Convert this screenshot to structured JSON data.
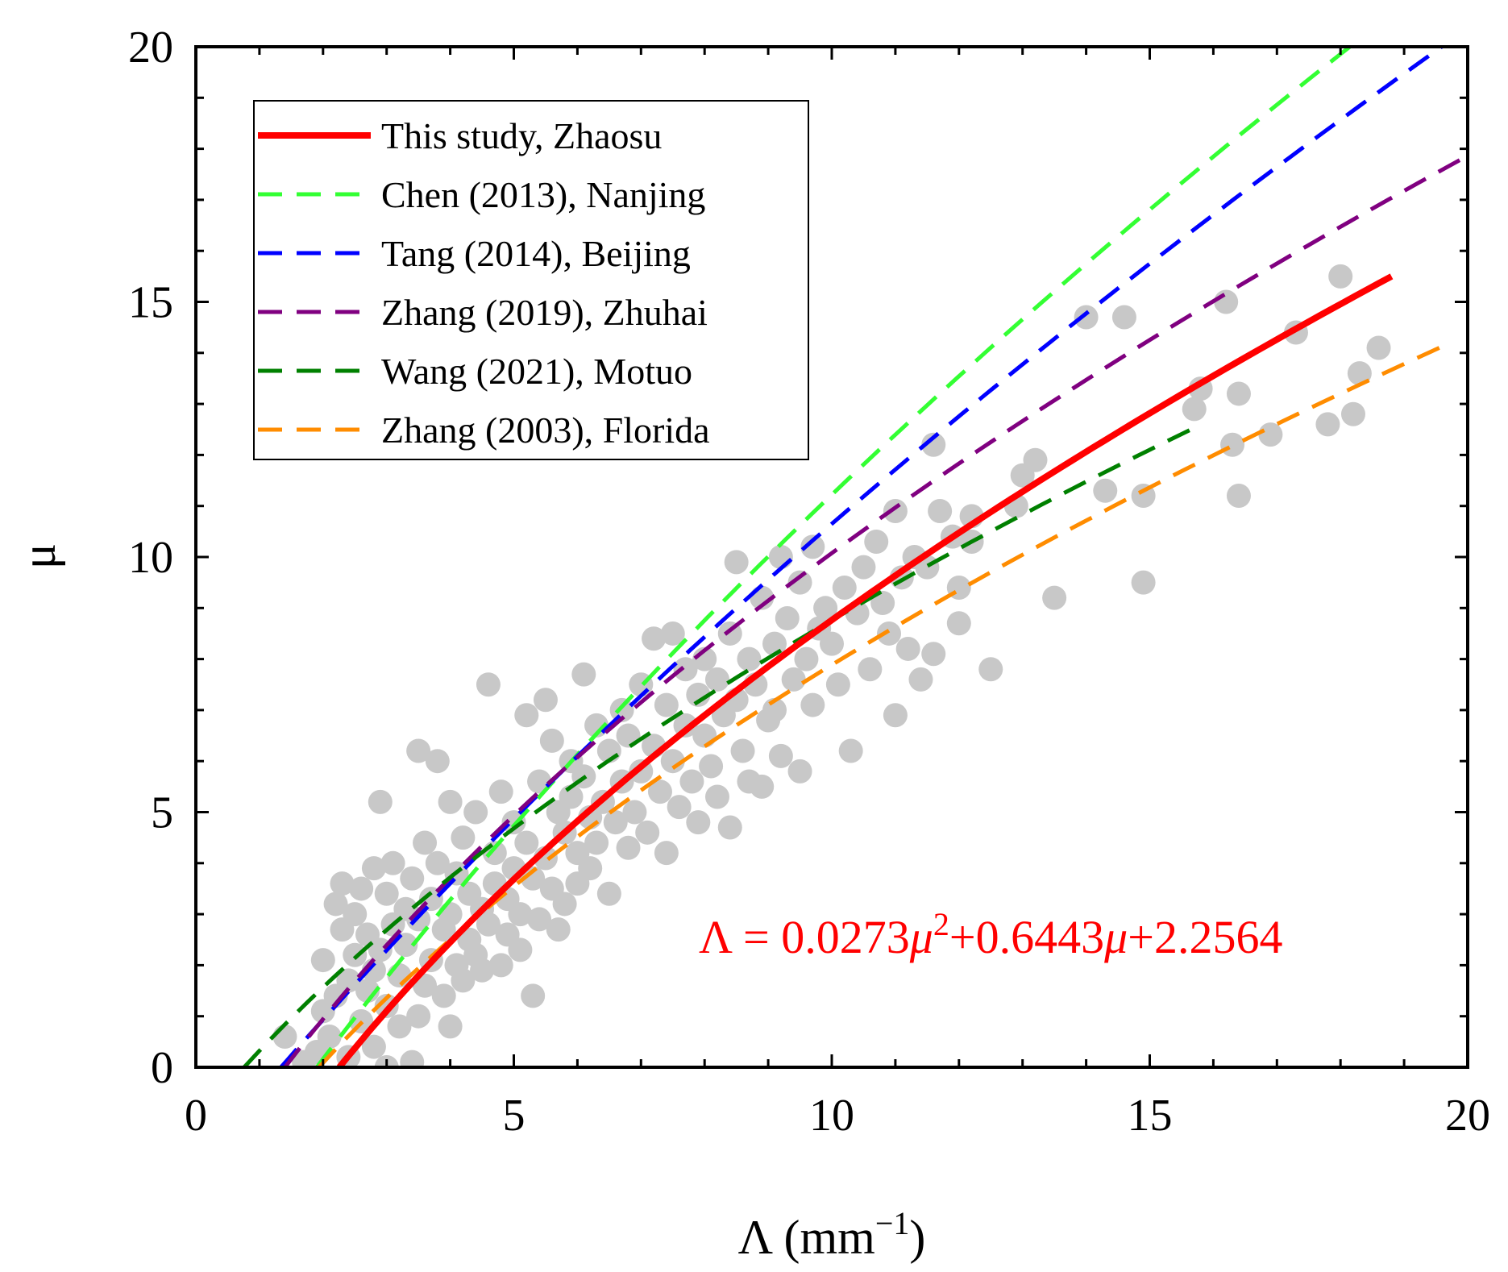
{
  "chart_data": {
    "type": "scatter",
    "xlabel": {
      "main": "Λ (mm",
      "sup": "−1",
      "close": ")"
    },
    "ylabel": "μ",
    "xlim": [
      0,
      20
    ],
    "ylim": [
      0,
      20
    ],
    "xticks": [
      0,
      5,
      10,
      15,
      20
    ],
    "yticks": [
      0,
      5,
      10,
      15,
      20
    ],
    "legend_position": "top-left",
    "annotation": {
      "prefix": "Λ = 0.0273",
      "mu": "μ",
      "sq": "2",
      "mid": "+0.6443",
      "tail": "+2.2564",
      "color": "#ff0000"
    },
    "scatter_color": "#c8c8c8",
    "points": [
      [
        1.4,
        0.6
      ],
      [
        1.7,
        0.1
      ],
      [
        1.9,
        0.3
      ],
      [
        2.0,
        1.1
      ],
      [
        2.0,
        2.1
      ],
      [
        2.1,
        0.6
      ],
      [
        2.2,
        1.4
      ],
      [
        2.2,
        3.2
      ],
      [
        2.3,
        3.6
      ],
      [
        2.3,
        2.7
      ],
      [
        2.4,
        0.2
      ],
      [
        2.4,
        1.7
      ],
      [
        2.5,
        2.2
      ],
      [
        2.5,
        3.0
      ],
      [
        2.6,
        0.9
      ],
      [
        2.6,
        3.5
      ],
      [
        2.7,
        1.5
      ],
      [
        2.7,
        2.6
      ],
      [
        2.8,
        0.4
      ],
      [
        2.8,
        3.9
      ],
      [
        2.8,
        1.9
      ],
      [
        2.9,
        5.2
      ],
      [
        2.9,
        2.3
      ],
      [
        3.0,
        0.0
      ],
      [
        3.0,
        3.4
      ],
      [
        3.0,
        1.2
      ],
      [
        3.1,
        2.8
      ],
      [
        3.1,
        4.0
      ],
      [
        3.2,
        0.8
      ],
      [
        3.2,
        1.8
      ],
      [
        3.3,
        3.1
      ],
      [
        3.3,
        2.4
      ],
      [
        3.4,
        0.1
      ],
      [
        3.4,
        3.7
      ],
      [
        3.5,
        6.2
      ],
      [
        3.5,
        1.0
      ],
      [
        3.5,
        2.9
      ],
      [
        3.6,
        4.4
      ],
      [
        3.6,
        1.6
      ],
      [
        3.7,
        3.3
      ],
      [
        3.7,
        2.1
      ],
      [
        3.8,
        6.0
      ],
      [
        3.8,
        4.0
      ],
      [
        3.9,
        1.4
      ],
      [
        3.9,
        2.7
      ],
      [
        4.0,
        5.2
      ],
      [
        4.0,
        3.0
      ],
      [
        4.0,
        0.8
      ],
      [
        4.1,
        3.8
      ],
      [
        4.1,
        2.0
      ],
      [
        4.2,
        4.5
      ],
      [
        4.2,
        1.7
      ],
      [
        4.3,
        2.5
      ],
      [
        4.3,
        3.4
      ],
      [
        4.4,
        5.0
      ],
      [
        4.4,
        2.2
      ],
      [
        4.5,
        3.1
      ],
      [
        4.5,
        1.9
      ],
      [
        4.6,
        7.5
      ],
      [
        4.6,
        2.8
      ],
      [
        4.7,
        3.6
      ],
      [
        4.7,
        4.2
      ],
      [
        4.8,
        2.0
      ],
      [
        4.8,
        5.4
      ],
      [
        4.9,
        3.3
      ],
      [
        4.9,
        2.6
      ],
      [
        5.0,
        3.9
      ],
      [
        5.0,
        4.8
      ],
      [
        5.1,
        3.0
      ],
      [
        5.1,
        2.3
      ],
      [
        5.2,
        6.9
      ],
      [
        5.2,
        4.4
      ],
      [
        5.3,
        3.7
      ],
      [
        5.3,
        1.4
      ],
      [
        5.4,
        5.6
      ],
      [
        5.4,
        2.9
      ],
      [
        5.5,
        7.2
      ],
      [
        5.5,
        4.1
      ],
      [
        5.6,
        3.5
      ],
      [
        5.6,
        6.4
      ],
      [
        5.7,
        5.0
      ],
      [
        5.7,
        2.7
      ],
      [
        5.8,
        4.6
      ],
      [
        5.8,
        3.2
      ],
      [
        5.9,
        6.0
      ],
      [
        5.9,
        5.3
      ],
      [
        6.0,
        4.2
      ],
      [
        6.0,
        3.6
      ],
      [
        6.1,
        7.7
      ],
      [
        6.1,
        5.7
      ],
      [
        6.2,
        4.9
      ],
      [
        6.2,
        3.9
      ],
      [
        6.3,
        6.7
      ],
      [
        6.3,
        4.4
      ],
      [
        6.4,
        5.2
      ],
      [
        6.5,
        3.4
      ],
      [
        6.5,
        6.2
      ],
      [
        6.6,
        4.8
      ],
      [
        6.7,
        5.6
      ],
      [
        6.7,
        7.0
      ],
      [
        6.8,
        4.3
      ],
      [
        6.8,
        6.5
      ],
      [
        6.9,
        5.0
      ],
      [
        7.0,
        7.5
      ],
      [
        7.0,
        5.8
      ],
      [
        7.1,
        4.6
      ],
      [
        7.2,
        8.4
      ],
      [
        7.2,
        6.3
      ],
      [
        7.3,
        5.4
      ],
      [
        7.4,
        7.1
      ],
      [
        7.4,
        4.2
      ],
      [
        7.5,
        8.5
      ],
      [
        7.5,
        6.0
      ],
      [
        7.6,
        5.1
      ],
      [
        7.7,
        7.8
      ],
      [
        7.7,
        6.7
      ],
      [
        7.8,
        5.6
      ],
      [
        7.9,
        7.3
      ],
      [
        7.9,
        4.8
      ],
      [
        8.0,
        8.0
      ],
      [
        8.0,
        6.5
      ],
      [
        8.1,
        5.9
      ],
      [
        8.2,
        7.6
      ],
      [
        8.2,
        5.3
      ],
      [
        8.3,
        6.9
      ],
      [
        8.4,
        8.5
      ],
      [
        8.4,
        4.7
      ],
      [
        8.5,
        9.9
      ],
      [
        8.5,
        7.2
      ],
      [
        8.6,
        6.2
      ],
      [
        8.7,
        8.0
      ],
      [
        8.7,
        5.6
      ],
      [
        8.8,
        7.5
      ],
      [
        8.9,
        9.2
      ],
      [
        8.9,
        5.5
      ],
      [
        9.0,
        6.8
      ],
      [
        9.1,
        8.3
      ],
      [
        9.1,
        7.0
      ],
      [
        9.2,
        10.0
      ],
      [
        9.2,
        6.1
      ],
      [
        9.3,
        8.8
      ],
      [
        9.4,
        7.6
      ],
      [
        9.5,
        9.5
      ],
      [
        9.5,
        5.8
      ],
      [
        9.6,
        8.0
      ],
      [
        9.7,
        10.2
      ],
      [
        9.7,
        7.1
      ],
      [
        9.8,
        8.6
      ],
      [
        9.9,
        9.0
      ],
      [
        10.0,
        8.3
      ],
      [
        10.1,
        7.5
      ],
      [
        10.2,
        9.4
      ],
      [
        10.3,
        6.2
      ],
      [
        10.4,
        8.9
      ],
      [
        10.5,
        9.8
      ],
      [
        10.6,
        7.8
      ],
      [
        10.7,
        10.3
      ],
      [
        10.8,
        9.1
      ],
      [
        10.9,
        8.5
      ],
      [
        11.0,
        10.9
      ],
      [
        11.0,
        6.9
      ],
      [
        11.1,
        9.6
      ],
      [
        11.2,
        8.2
      ],
      [
        11.3,
        10.0
      ],
      [
        11.4,
        7.6
      ],
      [
        11.5,
        9.8
      ],
      [
        11.6,
        12.2
      ],
      [
        11.6,
        8.1
      ],
      [
        11.7,
        10.9
      ],
      [
        11.9,
        10.4
      ],
      [
        12.0,
        9.4
      ],
      [
        12.0,
        8.7
      ],
      [
        12.2,
        10.8
      ],
      [
        12.2,
        10.3
      ],
      [
        12.5,
        7.8
      ],
      [
        12.9,
        11.0
      ],
      [
        13.0,
        11.6
      ],
      [
        13.2,
        11.9
      ],
      [
        13.5,
        9.2
      ],
      [
        14.0,
        14.7
      ],
      [
        14.3,
        11.3
      ],
      [
        14.6,
        14.7
      ],
      [
        14.9,
        11.2
      ],
      [
        14.9,
        9.5
      ],
      [
        15.7,
        12.9
      ],
      [
        15.8,
        13.3
      ],
      [
        16.2,
        15.0
      ],
      [
        16.3,
        12.2
      ],
      [
        16.4,
        11.2
      ],
      [
        16.4,
        13.2
      ],
      [
        16.9,
        12.4
      ],
      [
        17.3,
        14.4
      ],
      [
        17.8,
        12.6
      ],
      [
        18.0,
        15.5
      ],
      [
        18.2,
        12.8
      ],
      [
        18.3,
        13.6
      ],
      [
        18.6,
        14.1
      ]
    ],
    "series": [
      {
        "name": "This study, Zhaosu",
        "color": "#ff0000",
        "style": "solid",
        "a": 0.0273,
        "b": 0.6443,
        "c": 2.2564,
        "mu_range": [
          0,
          15.5
        ]
      },
      {
        "name": "Chen (2013), Nanjing",
        "color": "#33ff33",
        "style": "dashed",
        "a": 0.0103,
        "b": 0.6062,
        "c": 1.9013,
        "mu_range": [
          0,
          20
        ]
      },
      {
        "name": "Tang (2014), Beijing",
        "color": "#0000ff",
        "style": "dashed",
        "a": 0.0106,
        "b": 0.7006,
        "c": 1.3375,
        "mu_range": [
          0,
          20
        ]
      },
      {
        "name": "Zhang (2019), Zhuhai",
        "color": "#800080",
        "style": "dashed",
        "a": 0.0241,
        "b": 0.6107,
        "c": 1.4008,
        "mu_range": [
          0,
          18.4
        ]
      },
      {
        "name": "Wang (2021), Motuo",
        "color": "#008000",
        "style": "dashed",
        "a": 0.0365,
        "b": 0.735,
        "c": 0.759,
        "mu_range": [
          0,
          12.6
        ]
      },
      {
        "name": "Zhang (2003), Florida",
        "color": "#ff8c00",
        "style": "dashed",
        "a": 0.0365,
        "b": 0.735,
        "c": 1.935,
        "mu_range": [
          0,
          14.2
        ]
      }
    ]
  }
}
